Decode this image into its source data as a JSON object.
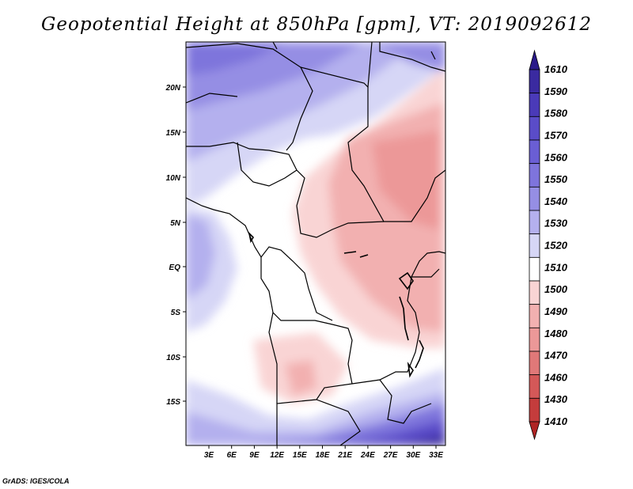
{
  "title": "Geopotential Height at 850hPa [gpm], VT: 2019092612",
  "credit": "GrADS: IGES/COLA",
  "map": {
    "lat_labels": [
      "20N",
      "15N",
      "10N",
      "5N",
      "EQ",
      "5S",
      "10S",
      "15S"
    ],
    "lon_labels": [
      "3E",
      "6E",
      "9E",
      "12E",
      "15E",
      "18E",
      "21E",
      "24E",
      "27E",
      "30E",
      "33E"
    ]
  },
  "colorbar": {
    "levels": [
      "1610",
      "1590",
      "1580",
      "1570",
      "1560",
      "1550",
      "1540",
      "1530",
      "1520",
      "1510",
      "1500",
      "1490",
      "1480",
      "1470",
      "1460",
      "1430",
      "1410"
    ],
    "colors": [
      "#2a1a8a",
      "#3a2aa0",
      "#4a3ab8",
      "#5a4cc8",
      "#6a5ed4",
      "#7e74dc",
      "#958ee4",
      "#b4b0ee",
      "#d6d6f6",
      "#ffffff",
      "#f9d4d4",
      "#f2b0b0",
      "#ec9898",
      "#e07878",
      "#d45858",
      "#c43c3c",
      "#b02424"
    ]
  }
}
